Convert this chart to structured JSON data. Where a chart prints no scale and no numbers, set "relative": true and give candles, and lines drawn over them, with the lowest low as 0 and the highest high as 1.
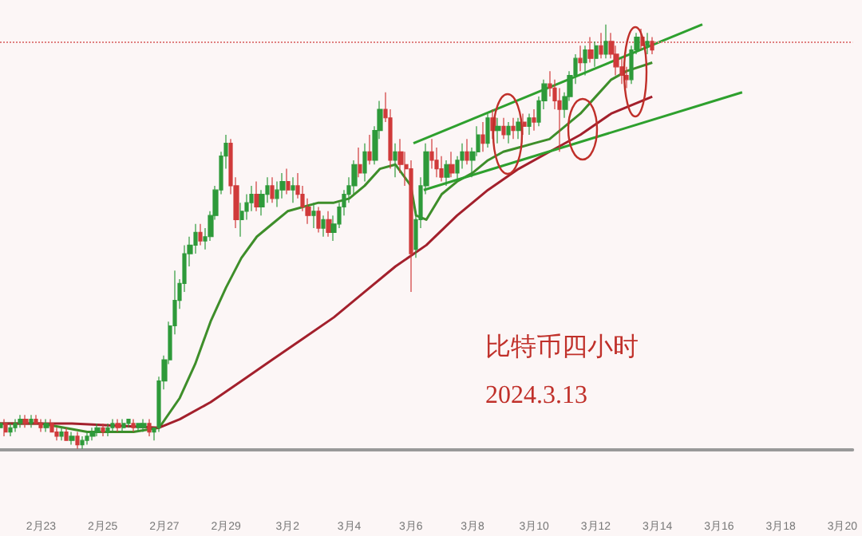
{
  "chart_data": {
    "type": "candlestick",
    "relative": true,
    "grid": false,
    "marker": "none",
    "xlim": [
      "2024-02-21T16:00",
      "2024-03-20T08:00"
    ],
    "xticks": [
      {
        "value": "2024-02-23",
        "label": "2月23"
      },
      {
        "value": "2024-02-25",
        "label": "2月25"
      },
      {
        "value": "2024-02-27",
        "label": "2月27"
      },
      {
        "value": "2024-02-29",
        "label": "2月29"
      },
      {
        "value": "2024-03-02",
        "label": "3月2"
      },
      {
        "value": "2024-03-04",
        "label": "3月4"
      },
      {
        "value": "2024-03-06",
        "label": "3月6"
      },
      {
        "value": "2024-03-08",
        "label": "3月8"
      },
      {
        "value": "2024-03-10",
        "label": "3月10"
      },
      {
        "value": "2024-03-12",
        "label": "3月12"
      },
      {
        "value": "2024-03-14",
        "label": "3月14"
      },
      {
        "value": "2024-03-16",
        "label": "3月16"
      },
      {
        "value": "2024-03-18",
        "label": "3月18"
      },
      {
        "value": "2024-03-20",
        "label": "3月20"
      }
    ],
    "annotations": [
      "比特币四小时",
      "2024.3.13"
    ],
    "ref_lines": [
      {
        "axis": "y",
        "value": 0.96,
        "color": "#e08080",
        "line_style": "dotted"
      }
    ],
    "series": [
      {
        "colors": [
          "#2e9a3a",
          "#d03a3a",
          "#2e9a3a",
          "#2e9a3a",
          "#2e9a3a",
          "#d03a3a",
          "#2e9a3a",
          "#d03a3a",
          "#d03a3a",
          "#2e9a3a",
          "#d03a3a",
          "#d03a3a",
          "#2e9a3a",
          "#d03a3a",
          "#2e9a3a",
          "#d03a3a",
          "#2e9a3a",
          "#2e9a3a",
          "#2e9a3a",
          "#2e9a3a",
          "#d03a3a",
          "#2e9a3a",
          "#2e9a3a",
          "#d03a3a",
          "#2e9a3a",
          "#2e9a3a",
          "#d03a3a",
          "#2e9a3a",
          "#2e9a3a",
          "#d03a3a",
          "#2e9a3a",
          "#2e9a3a",
          "#2e9a3a",
          "#2e9a3a",
          "#2e9a3a",
          "#2e9a3a",
          "#2e9a3a",
          "#2e9a3a",
          "#2e9a3a",
          "#d03a3a",
          "#2e9a3a",
          "#2e9a3a",
          "#2e9a3a",
          "#2e9a3a",
          "#2e9a3a",
          "#d03a3a",
          "#d03a3a",
          "#2e9a3a",
          "#2e9a3a",
          "#2e9a3a",
          "#d03a3a",
          "#2e9a3a",
          "#2e9a3a",
          "#d03a3a",
          "#2e9a3a",
          "#2e9a3a",
          "#d03a3a",
          "#2e9a3a",
          "#d03a3a",
          "#d03a3a",
          "#d03a3a",
          "#2e9a3a",
          "#d03a3a",
          "#2e9a3a",
          "#d03a3a",
          "#2e9a3a",
          "#2e9a3a",
          "#2e9a3a",
          "#2e9a3a",
          "#2e9a3a",
          "#d03a3a",
          "#2e9a3a",
          "#d03a3a",
          "#2e9a3a",
          "#2e9a3a",
          "#d03a3a",
          "#d03a3a",
          "#2e9a3a",
          "#d03a3a",
          "#d03a3a",
          "#d03a3a",
          "#2e9a3a",
          "#2e9a3a",
          "#2e9a3a",
          "#d03a3a",
          "#d03a3a",
          "#d03a3a",
          "#2e9a3a",
          "#d03a3a",
          "#2e9a3a",
          "#2e9a3a",
          "#d03a3a",
          "#2e9a3a",
          "#2e9a3a",
          "#d03a3a",
          "#2e9a3a",
          "#d03a3a",
          "#2e9a3a",
          "#d03a3a",
          "#2e9a3a",
          "#d03a3a",
          "#2e9a3a",
          "#d03a3a",
          "#2e9a3a",
          "#d03a3a",
          "#2e9a3a",
          "#2e9a3a",
          "#d03a3a",
          "#d03a3a",
          "#d03a3a",
          "#2e9a3a",
          "#2e9a3a",
          "#2e9a3a",
          "#d03a3a",
          "#2e9a3a",
          "#d03a3a",
          "#2e9a3a",
          "#d03a3a",
          "#2e9a3a",
          "#d03a3a",
          "#d03a3a",
          "#d03a3a",
          "#d03a3a",
          "#2e9a3a",
          "#2e9a3a",
          "#d03a3a",
          "#2e9a3a",
          "#d03a3a"
        ],
        "x": [
          "2024-02-21T16:00",
          "2024-02-21T20:00",
          "2024-02-22T00:00",
          "2024-02-22T04:00",
          "2024-02-22T08:00",
          "2024-02-22T12:00",
          "2024-02-22T16:00",
          "2024-02-22T20:00",
          "2024-02-23T00:00",
          "2024-02-23T04:00",
          "2024-02-23T08:00",
          "2024-02-23T12:00",
          "2024-02-23T16:00",
          "2024-02-23T20:00",
          "2024-02-24T00:00",
          "2024-02-24T04:00",
          "2024-02-24T08:00",
          "2024-02-24T12:00",
          "2024-02-24T16:00",
          "2024-02-24T20:00",
          "2024-02-25T00:00",
          "2024-02-25T04:00",
          "2024-02-25T08:00",
          "2024-02-25T12:00",
          "2024-02-25T16:00",
          "2024-02-25T20:00",
          "2024-02-26T00:00",
          "2024-02-26T04:00",
          "2024-02-26T08:00",
          "2024-02-26T12:00",
          "2024-02-26T16:00",
          "2024-02-26T20:00",
          "2024-02-27T00:00",
          "2024-02-27T04:00",
          "2024-02-27T08:00",
          "2024-02-27T12:00",
          "2024-02-27T16:00",
          "2024-02-27T20:00",
          "2024-02-28T00:00",
          "2024-02-28T04:00",
          "2024-02-28T08:00",
          "2024-02-28T12:00",
          "2024-02-28T16:00",
          "2024-02-28T20:00",
          "2024-02-29T00:00",
          "2024-02-29T04:00",
          "2024-02-29T08:00",
          "2024-02-29T12:00",
          "2024-02-29T16:00",
          "2024-02-29T20:00",
          "2024-03-01T00:00",
          "2024-03-01T04:00",
          "2024-03-01T08:00",
          "2024-03-01T12:00",
          "2024-03-01T16:00",
          "2024-03-01T20:00",
          "2024-03-02T00:00",
          "2024-03-02T04:00",
          "2024-03-02T08:00",
          "2024-03-02T12:00",
          "2024-03-02T16:00",
          "2024-03-02T20:00",
          "2024-03-03T00:00",
          "2024-03-03T04:00",
          "2024-03-03T08:00",
          "2024-03-03T12:00",
          "2024-03-03T16:00",
          "2024-03-03T20:00",
          "2024-03-04T00:00",
          "2024-03-04T04:00",
          "2024-03-04T08:00",
          "2024-03-04T12:00",
          "2024-03-04T16:00",
          "2024-03-04T20:00",
          "2024-03-05T00:00",
          "2024-03-05T04:00",
          "2024-03-05T08:00",
          "2024-03-05T12:00",
          "2024-03-05T16:00",
          "2024-03-05T20:00",
          "2024-03-06T00:00",
          "2024-03-06T04:00",
          "2024-03-06T08:00",
          "2024-03-06T12:00",
          "2024-03-06T16:00",
          "2024-03-06T20:00",
          "2024-03-07T00:00",
          "2024-03-07T04:00",
          "2024-03-07T08:00",
          "2024-03-07T12:00",
          "2024-03-07T16:00",
          "2024-03-07T20:00",
          "2024-03-08T00:00",
          "2024-03-08T04:00",
          "2024-03-08T08:00",
          "2024-03-08T12:00",
          "2024-03-08T16:00",
          "2024-03-08T20:00",
          "2024-03-09T00:00",
          "2024-03-09T04:00",
          "2024-03-09T08:00",
          "2024-03-09T12:00",
          "2024-03-09T16:00",
          "2024-03-09T20:00",
          "2024-03-10T00:00",
          "2024-03-10T04:00",
          "2024-03-10T08:00",
          "2024-03-10T12:00",
          "2024-03-10T16:00",
          "2024-03-10T20:00",
          "2024-03-11T00:00",
          "2024-03-11T04:00",
          "2024-03-11T08:00",
          "2024-03-11T12:00",
          "2024-03-11T16:00",
          "2024-03-11T20:00",
          "2024-03-12T00:00",
          "2024-03-12T04:00",
          "2024-03-12T08:00",
          "2024-03-12T12:00",
          "2024-03-12T16:00",
          "2024-03-12T20:00",
          "2024-03-13T00:00",
          "2024-03-13T04:00",
          "2024-03-13T08:00",
          "2024-03-13T12:00",
          "2024-03-13T16:00",
          "2024-03-13T20:00"
        ],
        "ohlc": [
          [
            0.05,
            0.07,
            0.04,
            0.06
          ],
          [
            0.06,
            0.07,
            0.03,
            0.04
          ],
          [
            0.04,
            0.06,
            0.03,
            0.05
          ],
          [
            0.05,
            0.07,
            0.04,
            0.06
          ],
          [
            0.06,
            0.08,
            0.05,
            0.07
          ],
          [
            0.07,
            0.08,
            0.05,
            0.06
          ],
          [
            0.06,
            0.08,
            0.05,
            0.07
          ],
          [
            0.07,
            0.08,
            0.06,
            0.06
          ],
          [
            0.06,
            0.07,
            0.04,
            0.05
          ],
          [
            0.05,
            0.07,
            0.04,
            0.06
          ],
          [
            0.06,
            0.07,
            0.04,
            0.04
          ],
          [
            0.04,
            0.05,
            0.02,
            0.03
          ],
          [
            0.03,
            0.05,
            0.02,
            0.04
          ],
          [
            0.04,
            0.05,
            0.02,
            0.02
          ],
          [
            0.02,
            0.04,
            0.01,
            0.03
          ],
          [
            0.03,
            0.04,
            0.0,
            0.01
          ],
          [
            0.01,
            0.03,
            0.0,
            0.02
          ],
          [
            0.02,
            0.04,
            0.01,
            0.03
          ],
          [
            0.03,
            0.05,
            0.02,
            0.04
          ],
          [
            0.04,
            0.06,
            0.03,
            0.05
          ],
          [
            0.05,
            0.06,
            0.03,
            0.04
          ],
          [
            0.04,
            0.06,
            0.03,
            0.05
          ],
          [
            0.05,
            0.07,
            0.04,
            0.06
          ],
          [
            0.06,
            0.07,
            0.04,
            0.05
          ],
          [
            0.05,
            0.07,
            0.04,
            0.06
          ],
          [
            0.06,
            0.07,
            0.05,
            0.07
          ],
          [
            0.06,
            0.07,
            0.04,
            0.05
          ],
          [
            0.05,
            0.06,
            0.04,
            0.06
          ],
          [
            0.05,
            0.07,
            0.04,
            0.06
          ],
          [
            0.06,
            0.07,
            0.03,
            0.04
          ],
          [
            0.04,
            0.05,
            0.02,
            0.05
          ],
          [
            0.05,
            0.17,
            0.04,
            0.16
          ],
          [
            0.16,
            0.22,
            0.14,
            0.21
          ],
          [
            0.21,
            0.3,
            0.2,
            0.29
          ],
          [
            0.29,
            0.42,
            0.27,
            0.35
          ],
          [
            0.35,
            0.4,
            0.33,
            0.39
          ],
          [
            0.39,
            0.48,
            0.37,
            0.46
          ],
          [
            0.46,
            0.5,
            0.43,
            0.48
          ],
          [
            0.48,
            0.53,
            0.46,
            0.51
          ],
          [
            0.51,
            0.53,
            0.48,
            0.49
          ],
          [
            0.49,
            0.52,
            0.47,
            0.5
          ],
          [
            0.5,
            0.56,
            0.49,
            0.55
          ],
          [
            0.55,
            0.62,
            0.54,
            0.61
          ],
          [
            0.61,
            0.7,
            0.6,
            0.69
          ],
          [
            0.69,
            0.74,
            0.66,
            0.72
          ],
          [
            0.72,
            0.73,
            0.6,
            0.62
          ],
          [
            0.62,
            0.64,
            0.52,
            0.54
          ],
          [
            0.54,
            0.58,
            0.5,
            0.56
          ],
          [
            0.56,
            0.6,
            0.54,
            0.58
          ],
          [
            0.58,
            0.62,
            0.56,
            0.6
          ],
          [
            0.6,
            0.63,
            0.56,
            0.57
          ],
          [
            0.57,
            0.61,
            0.55,
            0.6
          ],
          [
            0.6,
            0.64,
            0.58,
            0.62
          ],
          [
            0.62,
            0.64,
            0.58,
            0.59
          ],
          [
            0.59,
            0.63,
            0.57,
            0.61
          ],
          [
            0.61,
            0.65,
            0.59,
            0.63
          ],
          [
            0.63,
            0.66,
            0.6,
            0.61
          ],
          [
            0.61,
            0.64,
            0.58,
            0.62
          ],
          [
            0.62,
            0.65,
            0.59,
            0.6
          ],
          [
            0.6,
            0.62,
            0.56,
            0.57
          ],
          [
            0.57,
            0.59,
            0.53,
            0.55
          ],
          [
            0.55,
            0.58,
            0.52,
            0.56
          ],
          [
            0.56,
            0.57,
            0.51,
            0.52
          ],
          [
            0.52,
            0.55,
            0.5,
            0.54
          ],
          [
            0.54,
            0.56,
            0.5,
            0.51
          ],
          [
            0.51,
            0.55,
            0.49,
            0.53
          ],
          [
            0.53,
            0.58,
            0.52,
            0.57
          ],
          [
            0.57,
            0.61,
            0.55,
            0.6
          ],
          [
            0.6,
            0.64,
            0.58,
            0.62
          ],
          [
            0.62,
            0.68,
            0.6,
            0.67
          ],
          [
            0.67,
            0.71,
            0.64,
            0.65
          ],
          [
            0.65,
            0.72,
            0.63,
            0.7
          ],
          [
            0.7,
            0.74,
            0.67,
            0.68
          ],
          [
            0.68,
            0.76,
            0.67,
            0.75
          ],
          [
            0.75,
            0.82,
            0.73,
            0.8
          ],
          [
            0.8,
            0.84,
            0.77,
            0.78
          ],
          [
            0.78,
            0.8,
            0.66,
            0.68
          ],
          [
            0.68,
            0.72,
            0.64,
            0.7
          ],
          [
            0.7,
            0.73,
            0.65,
            0.67
          ],
          [
            0.67,
            0.7,
            0.62,
            0.66
          ],
          [
            0.66,
            0.68,
            0.37,
            0.46
          ],
          [
            0.47,
            0.56,
            0.45,
            0.54
          ],
          [
            0.54,
            0.64,
            0.52,
            0.62
          ],
          [
            0.62,
            0.72,
            0.6,
            0.7
          ],
          [
            0.7,
            0.73,
            0.66,
            0.68
          ],
          [
            0.68,
            0.71,
            0.64,
            0.66
          ],
          [
            0.66,
            0.69,
            0.63,
            0.64
          ],
          [
            0.64,
            0.68,
            0.62,
            0.67
          ],
          [
            0.67,
            0.7,
            0.64,
            0.65
          ],
          [
            0.65,
            0.69,
            0.63,
            0.68
          ],
          [
            0.68,
            0.72,
            0.66,
            0.7
          ],
          [
            0.7,
            0.73,
            0.67,
            0.68
          ],
          [
            0.68,
            0.71,
            0.64,
            0.7
          ],
          [
            0.7,
            0.76,
            0.69,
            0.74
          ],
          [
            0.74,
            0.77,
            0.7,
            0.72
          ],
          [
            0.72,
            0.79,
            0.71,
            0.78
          ],
          [
            0.78,
            0.8,
            0.73,
            0.75
          ],
          [
            0.75,
            0.78,
            0.72,
            0.76
          ],
          [
            0.76,
            0.78,
            0.73,
            0.74
          ],
          [
            0.74,
            0.77,
            0.72,
            0.76
          ],
          [
            0.76,
            0.78,
            0.73,
            0.75
          ],
          [
            0.75,
            0.78,
            0.73,
            0.77
          ],
          [
            0.77,
            0.79,
            0.74,
            0.76
          ],
          [
            0.76,
            0.79,
            0.74,
            0.78
          ],
          [
            0.78,
            0.8,
            0.75,
            0.77
          ],
          [
            0.77,
            0.83,
            0.76,
            0.82
          ],
          [
            0.82,
            0.87,
            0.8,
            0.86
          ],
          [
            0.86,
            0.89,
            0.83,
            0.85
          ],
          [
            0.85,
            0.87,
            0.8,
            0.82
          ],
          [
            0.82,
            0.85,
            0.7,
            0.8
          ],
          [
            0.8,
            0.84,
            0.78,
            0.83
          ],
          [
            0.83,
            0.89,
            0.82,
            0.88
          ],
          [
            0.88,
            0.93,
            0.86,
            0.92
          ],
          [
            0.92,
            0.95,
            0.89,
            0.91
          ],
          [
            0.91,
            0.95,
            0.88,
            0.94
          ],
          [
            0.94,
            0.97,
            0.91,
            0.92
          ],
          [
            0.92,
            0.96,
            0.9,
            0.95
          ],
          [
            0.95,
            0.98,
            0.92,
            0.93
          ],
          [
            0.93,
            1.0,
            0.92,
            0.96
          ],
          [
            0.96,
            0.98,
            0.92,
            0.93
          ],
          [
            0.93,
            0.95,
            0.88,
            0.9
          ],
          [
            0.9,
            0.92,
            0.86,
            0.88
          ],
          [
            0.88,
            0.9,
            0.85,
            0.87
          ],
          [
            0.87,
            0.95,
            0.86,
            0.94
          ],
          [
            0.94,
            0.98,
            0.93,
            0.97
          ],
          [
            0.97,
            0.99,
            0.94,
            0.95
          ],
          [
            0.95,
            0.98,
            0.93,
            0.96
          ],
          [
            0.96,
            0.97,
            0.93,
            0.94
          ]
        ]
      },
      {
        "type": "line",
        "color": "#3e8e2a",
        "x": [
          "2024-02-21T16:00",
          "2024-02-23T00:00",
          "2024-02-24T12:00",
          "2024-02-26T00:00",
          "2024-02-26T20:00",
          "2024-02-27T12:00",
          "2024-02-28T00:00",
          "2024-02-28T12:00",
          "2024-02-29T00:00",
          "2024-02-29T12:00",
          "2024-03-01T00:00",
          "2024-03-01T12:00",
          "2024-03-02T00:00",
          "2024-03-03T00:00",
          "2024-03-03T12:00",
          "2024-03-04T00:00",
          "2024-03-04T12:00",
          "2024-03-05T00:00",
          "2024-03-05T12:00",
          "2024-03-06T00:00",
          "2024-03-06T04:00",
          "2024-03-06T12:00",
          "2024-03-07T00:00",
          "2024-03-07T12:00",
          "2024-03-08T00:00",
          "2024-03-08T12:00",
          "2024-03-09T00:00",
          "2024-03-09T12:00",
          "2024-03-10T00:00",
          "2024-03-10T12:00",
          "2024-03-11T00:00",
          "2024-03-11T12:00",
          "2024-03-12T00:00",
          "2024-03-12T12:00",
          "2024-03-13T00:00",
          "2024-03-13T20:00"
        ],
        "values": [
          0.06,
          0.06,
          0.04,
          0.04,
          0.05,
          0.12,
          0.2,
          0.3,
          0.38,
          0.45,
          0.5,
          0.53,
          0.56,
          0.58,
          0.58,
          0.59,
          0.62,
          0.66,
          0.67,
          0.62,
          0.55,
          0.54,
          0.6,
          0.63,
          0.65,
          0.68,
          0.7,
          0.71,
          0.72,
          0.73,
          0.76,
          0.79,
          0.83,
          0.87,
          0.89,
          0.91
        ]
      },
      {
        "type": "line",
        "color": "#a3202c",
        "x": [
          "2024-02-21T16:00",
          "2024-02-24T00:00",
          "2024-02-26T20:00",
          "2024-02-27T12:00",
          "2024-02-28T12:00",
          "2024-02-29T12:00",
          "2024-03-01T12:00",
          "2024-03-02T12:00",
          "2024-03-03T12:00",
          "2024-03-04T12:00",
          "2024-03-05T12:00",
          "2024-03-06T12:00",
          "2024-03-07T12:00",
          "2024-03-08T12:00",
          "2024-03-09T12:00",
          "2024-03-10T12:00",
          "2024-03-11T12:00",
          "2024-03-12T12:00",
          "2024-03-13T20:00"
        ],
        "values": [
          0.06,
          0.06,
          0.05,
          0.07,
          0.11,
          0.16,
          0.21,
          0.26,
          0.31,
          0.37,
          0.43,
          0.48,
          0.55,
          0.61,
          0.66,
          0.7,
          0.74,
          0.79,
          0.83
        ]
      },
      {
        "type": "line",
        "color": "#2ea02e",
        "x": [
          "2024-03-06T02:00",
          "2024-03-15T11:00"
        ],
        "values": [
          0.72,
          1.0
        ]
      },
      {
        "type": "line",
        "color": "#2ea02e",
        "x": [
          "2024-03-06T10:00",
          "2024-03-16T18:00"
        ],
        "values": [
          0.61,
          0.84
        ]
      }
    ]
  }
}
